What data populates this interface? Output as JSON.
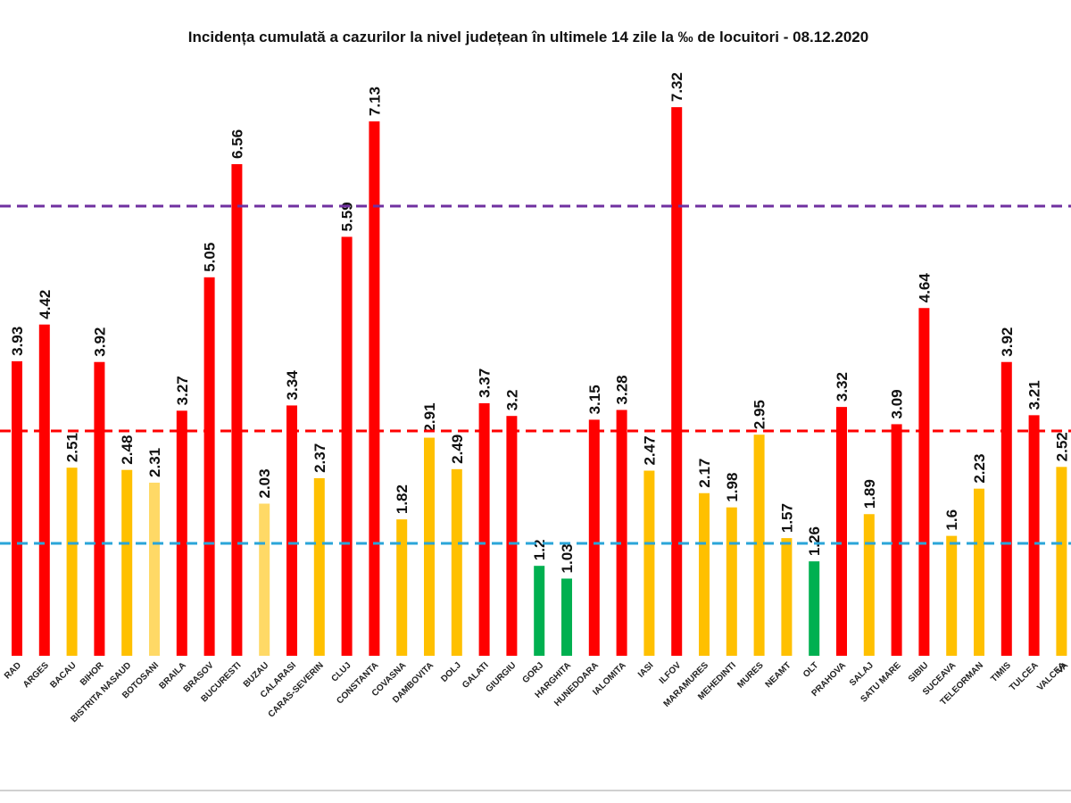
{
  "chart_data": {
    "type": "bar",
    "title": "Incidența cumulată a cazurilor la nivel județean în ultimele 14 zile la ‰ de locuitori - 08.12.2020",
    "categories": [
      "RAD",
      "ARGES",
      "BACAU",
      "BIHOR",
      "BISTRITA NASAUD",
      "BOTOSANI",
      "BRAILA",
      "BRASOV",
      "BUCURESTI",
      "BUZAU",
      "CALARASI",
      "CARAS-SEVERIN",
      "CLUJ",
      "CONSTANTA",
      "COVASNA",
      "DAMBOVITA",
      "DOLJ",
      "GALATI",
      "GIURGIU",
      "GORJ",
      "HARGHITA",
      "HUNEDOARA",
      "IALOMITA",
      "IASI",
      "ILFOV",
      "MARAMURES",
      "MEHEDINTI",
      "MURES",
      "NEAMT",
      "OLT",
      "PRAHOVA",
      "SALAJ",
      "SATU MARE",
      "SIBIU",
      "SUCEAVA",
      "TELEORMAN",
      "TIMIS",
      "TULCEA",
      "VALCEA",
      "VA"
    ],
    "values": [
      3.93,
      4.42,
      2.51,
      3.92,
      2.48,
      2.31,
      3.27,
      5.05,
      6.56,
      2.03,
      3.34,
      2.37,
      5.59,
      7.13,
      1.82,
      2.91,
      2.49,
      3.37,
      3.2,
      1.2,
      1.03,
      3.15,
      3.28,
      2.47,
      7.32,
      2.17,
      1.98,
      2.95,
      1.57,
      1.26,
      3.32,
      1.89,
      3.09,
      4.64,
      1.6,
      2.23,
      3.92,
      3.21,
      2.52,
      null
    ],
    "colors": [
      "#ff0000",
      "#ff0000",
      "#ffc000",
      "#ff0000",
      "#ffc000",
      "#ffd966",
      "#ff0000",
      "#ff0000",
      "#ff0000",
      "#ffd966",
      "#ff0000",
      "#ffc000",
      "#ff0000",
      "#ff0000",
      "#ffc000",
      "#ffc000",
      "#ffc000",
      "#ff0000",
      "#ff0000",
      "#00b050",
      "#00b050",
      "#ff0000",
      "#ff0000",
      "#ffc000",
      "#ff0000",
      "#ffc000",
      "#ffc000",
      "#ffc000",
      "#ffc000",
      "#00b050",
      "#ff0000",
      "#ffc000",
      "#ff0000",
      "#ff0000",
      "#ffc000",
      "#ffc000",
      "#ff0000",
      "#ff0000",
      "#ffc000",
      null
    ],
    "ylim": [
      0,
      8
    ],
    "thresholds": [
      {
        "value": 6,
        "color": "#7030a0"
      },
      {
        "value": 3,
        "color": "#ff0000"
      },
      {
        "value": 1.5,
        "color": "#2aa5d8"
      }
    ]
  }
}
